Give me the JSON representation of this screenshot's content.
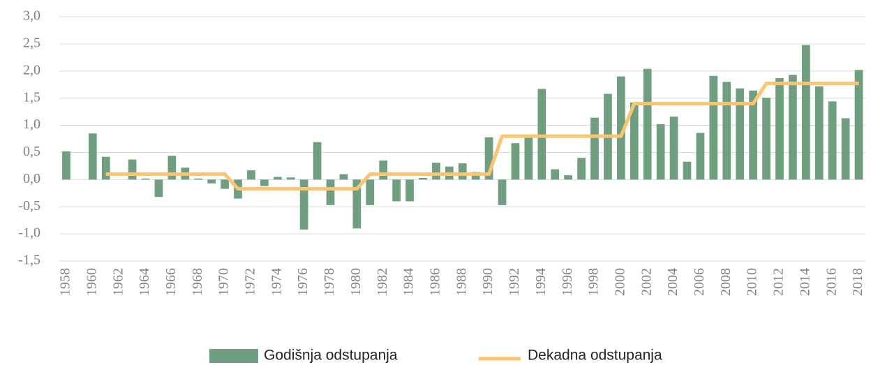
{
  "chart_data": {
    "type": "bar",
    "categories": [
      "1958",
      null,
      "1960",
      null,
      "1962",
      null,
      "1964",
      null,
      "1966",
      null,
      "1968",
      null,
      "1970",
      null,
      "1972",
      null,
      "1974",
      null,
      "1976",
      null,
      "1978",
      null,
      "1980",
      null,
      "1982",
      null,
      "1984",
      null,
      "1986",
      null,
      "1988",
      null,
      "1990",
      null,
      "1992",
      null,
      "1994",
      null,
      "1996",
      null,
      "1998",
      null,
      "2000",
      null,
      "2002",
      null,
      "2004",
      null,
      "2006",
      null,
      "2008",
      null,
      "2010",
      null,
      "2012",
      null,
      "2014",
      null,
      "2016",
      null,
      "2018"
    ],
    "series": [
      {
        "name": "Godišnja odstupanja",
        "type": "bar",
        "color": "#6f9f80",
        "values": [
          0.52,
          0,
          0.85,
          0.42,
          0,
          0.37,
          0.02,
          -0.32,
          0.44,
          0.22,
          0.02,
          -0.07,
          -0.17,
          -0.35,
          0.17,
          -0.12,
          0.05,
          0.04,
          -0.92,
          0.69,
          -0.47,
          0.1,
          -0.9,
          -0.47,
          0.35,
          -0.4,
          -0.4,
          0.03,
          0.31,
          0.24,
          0.3,
          0.14,
          0.78,
          -0.47,
          0.67,
          0.77,
          1.67,
          0.19,
          0.08,
          0.4,
          1.14,
          1.58,
          1.9,
          1.42,
          2.04,
          1.02,
          1.16,
          0.33,
          0.86,
          1.91,
          1.8,
          1.68,
          1.64,
          1.51,
          1.87,
          1.93,
          2.48,
          1.72,
          1.44,
          1.13,
          2.02
        ]
      },
      {
        "name": "Dekadna odstupanja",
        "type": "line",
        "color": "#f9c571",
        "values": [
          null,
          null,
          null,
          0.1,
          0.1,
          0.1,
          0.1,
          0.1,
          0.1,
          0.1,
          0.1,
          0.1,
          0.1,
          -0.17,
          -0.17,
          -0.17,
          -0.17,
          -0.17,
          -0.17,
          -0.17,
          -0.17,
          -0.17,
          -0.17,
          0.1,
          0.1,
          0.1,
          0.1,
          0.1,
          0.1,
          0.1,
          0.1,
          0.1,
          0.1,
          0.8,
          0.8,
          0.8,
          0.8,
          0.8,
          0.8,
          0.8,
          0.8,
          0.8,
          0.8,
          1.4,
          1.4,
          1.4,
          1.4,
          1.4,
          1.4,
          1.4,
          1.4,
          1.4,
          1.4,
          1.77,
          1.77,
          1.77,
          1.77,
          1.77,
          1.77,
          1.77,
          1.77
        ]
      }
    ],
    "ylim": [
      -1.5,
      3.0
    ],
    "yticks": [
      {
        "value": -1.5,
        "label": "-1,5"
      },
      {
        "value": -1.0,
        "label": "-1,0"
      },
      {
        "value": -0.5,
        "label": "-0,5"
      },
      {
        "value": 0,
        "label": "0,0"
      },
      {
        "value": 0.5,
        "label": "0,5"
      },
      {
        "value": 1.0,
        "label": "1,0"
      },
      {
        "value": 1.5,
        "label": "1,5"
      },
      {
        "value": 2.0,
        "label": "2,0"
      },
      {
        "value": 2.5,
        "label": "2,5"
      },
      {
        "value": 3.0,
        "label": "3,0"
      }
    ],
    "grid": true,
    "legend": "bottom"
  }
}
